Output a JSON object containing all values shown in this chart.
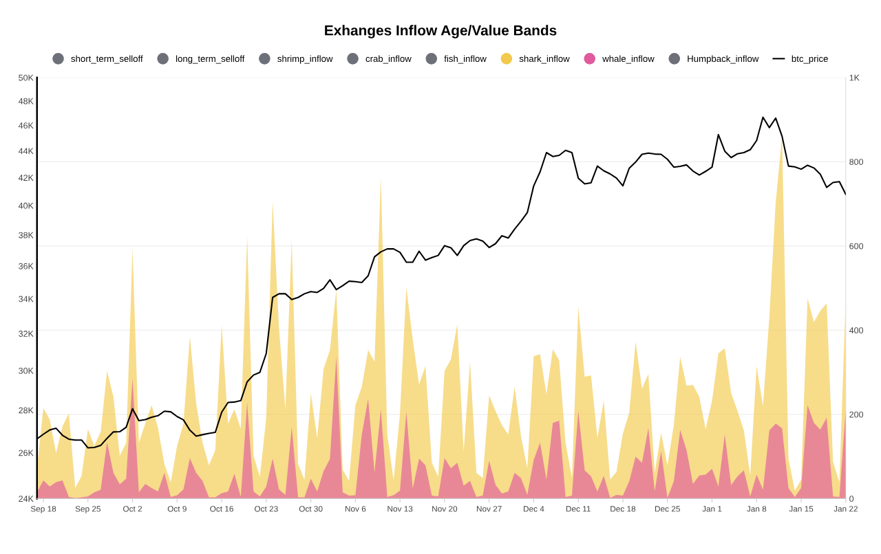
{
  "chart_data": {
    "type": "area",
    "title": "Exhanges Inflow Age/Value Bands",
    "categories": [
      null,
      "Sep 18",
      null,
      null,
      null,
      null,
      null,
      null,
      "Sep 25",
      null,
      null,
      null,
      null,
      null,
      null,
      "Oct 2",
      null,
      null,
      null,
      null,
      null,
      null,
      "Oct 9",
      null,
      null,
      null,
      null,
      null,
      null,
      "Oct 16",
      null,
      null,
      null,
      null,
      null,
      null,
      "Oct 23",
      null,
      null,
      null,
      null,
      null,
      null,
      "Oct 30",
      null,
      null,
      null,
      null,
      null,
      null,
      "Nov 6",
      null,
      null,
      null,
      null,
      null,
      null,
      "Nov 13",
      null,
      null,
      null,
      null,
      null,
      null,
      "Nov 20",
      null,
      null,
      null,
      null,
      null,
      null,
      "Nov 27",
      null,
      null,
      null,
      null,
      null,
      null,
      "Dec 4",
      null,
      null,
      null,
      null,
      null,
      null,
      "Dec 11",
      null,
      null,
      null,
      null,
      null,
      null,
      "Dec 18",
      null,
      null,
      null,
      null,
      null,
      null,
      "Dec 25",
      null,
      null,
      null,
      null,
      null,
      null,
      "Jan 1",
      null,
      null,
      null,
      null,
      null,
      null,
      "Jan 8",
      null,
      null,
      null,
      null,
      null,
      null,
      "Jan 15",
      null,
      null,
      null,
      null,
      null,
      null,
      "Jan 22"
    ],
    "series": [
      {
        "name": "short_term_selloff",
        "color": "#6e7079",
        "values": [
          null,
          null,
          null,
          null,
          null,
          null,
          null,
          null,
          null,
          null,
          null,
          null,
          null,
          null,
          null,
          null,
          null,
          null,
          null,
          null,
          null,
          null,
          null,
          null,
          null,
          null,
          null,
          null,
          null,
          null,
          null,
          null,
          null,
          null,
          null,
          null,
          null,
          null,
          null,
          null,
          null,
          null,
          null,
          null,
          null,
          null,
          null,
          null,
          null,
          null,
          null,
          null,
          null,
          null,
          null,
          null,
          null,
          null,
          null,
          null,
          null,
          null,
          null,
          null,
          null,
          null,
          null,
          null,
          null,
          null,
          null,
          null,
          null,
          null,
          null,
          null,
          null,
          null,
          null,
          null,
          null,
          null,
          null,
          null,
          null,
          null,
          null,
          null,
          null,
          null,
          null,
          null,
          null,
          null,
          null,
          null,
          null,
          null,
          null,
          null,
          null,
          null,
          null,
          null,
          null,
          null,
          null,
          null,
          null,
          null,
          null,
          null,
          null,
          null,
          null,
          null,
          null,
          null,
          null,
          null,
          null,
          null,
          null,
          null,
          null,
          null,
          null,
          null
        ]
      },
      {
        "name": "long_term_selloff",
        "color": "#6e7079",
        "values": [
          null,
          null,
          null,
          null,
          null,
          null,
          null,
          null,
          null,
          null,
          null,
          null,
          null,
          null,
          null,
          null,
          null,
          null,
          null,
          null,
          null,
          null,
          null,
          null,
          null,
          null,
          null,
          null,
          null,
          null,
          null,
          null,
          null,
          null,
          null,
          null,
          null,
          null,
          null,
          null,
          null,
          null,
          null,
          null,
          null,
          null,
          null,
          null,
          null,
          null,
          null,
          null,
          null,
          null,
          null,
          null,
          null,
          null,
          null,
          null,
          null,
          null,
          null,
          null,
          null,
          null,
          null,
          null,
          null,
          null,
          null,
          null,
          null,
          null,
          null,
          null,
          null,
          null,
          null,
          null,
          null,
          null,
          null,
          null,
          null,
          null,
          null,
          null,
          null,
          null,
          null,
          null,
          null,
          null,
          null,
          null,
          null,
          null,
          null,
          null,
          null,
          null,
          null,
          null,
          null,
          null,
          null,
          null,
          null,
          null,
          null,
          null,
          null,
          null,
          null,
          null,
          null,
          null,
          null,
          null,
          null,
          null,
          null,
          null,
          null,
          null,
          null,
          null
        ]
      },
      {
        "name": "shrimp_inflow",
        "color": "#6e7079",
        "values": [
          null,
          null,
          null,
          null,
          null,
          null,
          null,
          null,
          null,
          null,
          null,
          null,
          null,
          null,
          null,
          null,
          null,
          null,
          null,
          null,
          null,
          null,
          null,
          null,
          null,
          null,
          null,
          null,
          null,
          null,
          null,
          null,
          null,
          null,
          null,
          null,
          null,
          null,
          null,
          null,
          null,
          null,
          null,
          null,
          null,
          null,
          null,
          null,
          null,
          null,
          null,
          null,
          null,
          null,
          null,
          null,
          null,
          null,
          null,
          null,
          null,
          null,
          null,
          null,
          null,
          null,
          null,
          null,
          null,
          null,
          null,
          null,
          null,
          null,
          null,
          null,
          null,
          null,
          null,
          null,
          null,
          null,
          null,
          null,
          null,
          null,
          null,
          null,
          null,
          null,
          null,
          null,
          null,
          null,
          null,
          null,
          null,
          null,
          null,
          null,
          null,
          null,
          null,
          null,
          null,
          null,
          null,
          null,
          null,
          null,
          null,
          null,
          null,
          null,
          null,
          null,
          null,
          null,
          null,
          null,
          null,
          null,
          null,
          null,
          null,
          null,
          null,
          null
        ]
      },
      {
        "name": "crab_inflow",
        "color": "#6e7079",
        "values": [
          null,
          null,
          null,
          null,
          null,
          null,
          null,
          null,
          null,
          null,
          null,
          null,
          null,
          null,
          null,
          null,
          null,
          null,
          null,
          null,
          null,
          null,
          null,
          null,
          null,
          null,
          null,
          null,
          null,
          null,
          null,
          null,
          null,
          null,
          null,
          null,
          null,
          null,
          null,
          null,
          null,
          null,
          null,
          null,
          null,
          null,
          null,
          null,
          null,
          null,
          null,
          null,
          null,
          null,
          null,
          null,
          null,
          null,
          null,
          null,
          null,
          null,
          null,
          null,
          null,
          null,
          null,
          null,
          null,
          null,
          null,
          null,
          null,
          null,
          null,
          null,
          null,
          null,
          null,
          null,
          null,
          null,
          null,
          null,
          null,
          null,
          null,
          null,
          null,
          null,
          null,
          null,
          null,
          null,
          null,
          null,
          null,
          null,
          null,
          null,
          null,
          null,
          null,
          null,
          null,
          null,
          null,
          null,
          null,
          null,
          null,
          null,
          null,
          null,
          null,
          null,
          null,
          null,
          null,
          null,
          null,
          null,
          null,
          null,
          null,
          null,
          null,
          null
        ]
      },
      {
        "name": "fish_inflow",
        "color": "#6e7079",
        "values": [
          null,
          null,
          null,
          null,
          null,
          null,
          null,
          null,
          null,
          null,
          null,
          null,
          null,
          null,
          null,
          null,
          null,
          null,
          null,
          null,
          null,
          null,
          null,
          null,
          null,
          null,
          null,
          null,
          null,
          null,
          null,
          null,
          null,
          null,
          null,
          null,
          null,
          null,
          null,
          null,
          null,
          null,
          null,
          null,
          null,
          null,
          null,
          null,
          null,
          null,
          null,
          null,
          null,
          null,
          null,
          null,
          null,
          null,
          null,
          null,
          null,
          null,
          null,
          null,
          null,
          null,
          null,
          null,
          null,
          null,
          null,
          null,
          null,
          null,
          null,
          null,
          null,
          null,
          null,
          null,
          null,
          null,
          null,
          null,
          null,
          null,
          null,
          null,
          null,
          null,
          null,
          null,
          null,
          null,
          null,
          null,
          null,
          null,
          null,
          null,
          null,
          null,
          null,
          null,
          null,
          null,
          null,
          null,
          null,
          null,
          null,
          null,
          null,
          null,
          null,
          null,
          null,
          null,
          null,
          null,
          null,
          null,
          null,
          null,
          null,
          null,
          null,
          null
        ]
      },
      {
        "name": "shark_inflow",
        "color": "#f2c94c",
        "axis": "y2",
        "values": [
          72,
          215,
          188,
          108,
          172,
          202,
          25,
          54,
          165,
          125,
          158,
          303,
          242,
          102,
          132,
          594,
          133,
          178,
          222,
          168,
          82,
          39,
          125,
          178,
          385,
          225,
          132,
          79,
          115,
          413,
          178,
          212,
          166,
          624,
          102,
          52,
          192,
          707,
          405,
          212,
          614,
          82,
          45,
          250,
          144,
          308,
          353,
          496,
          69,
          42,
          222,
          265,
          353,
          325,
          765,
          152,
          44,
          202,
          502,
          378,
          271,
          315,
          85,
          52,
          303,
          331,
          414,
          112,
          325,
          61,
          49,
          245,
          208,
          175,
          152,
          266,
          148,
          72,
          338,
          343,
          248,
          355,
          328,
          132,
          49,
          456,
          289,
          293,
          144,
          233,
          45,
          64,
          154,
          204,
          373,
          261,
          296,
          62,
          156,
          79,
          175,
          337,
          268,
          270,
          242,
          165,
          232,
          345,
          357,
          251,
          208,
          162,
          55,
          315,
          220,
          431,
          704,
          860,
          95,
          19,
          45,
          476,
          419,
          446,
          464,
          88,
          39,
          479
        ]
      },
      {
        "name": "whale_inflow",
        "color": "#e05a9c",
        "axis": "y2",
        "values": [
          15,
          43,
          29,
          39,
          43,
          4,
          1,
          3,
          5,
          15,
          21,
          134,
          61,
          34,
          47,
          285,
          15,
          35,
          25,
          17,
          61,
          4,
          8,
          22,
          96,
          61,
          42,
          3,
          3,
          13,
          17,
          59,
          4,
          228,
          17,
          5,
          29,
          95,
          22,
          9,
          170,
          3,
          3,
          47,
          17,
          65,
          94,
          337,
          15,
          7,
          8,
          152,
          237,
          62,
          212,
          4,
          8,
          19,
          206,
          24,
          95,
          79,
          7,
          5,
          96,
          72,
          85,
          31,
          42,
          4,
          7,
          90,
          33,
          12,
          17,
          61,
          49,
          9,
          92,
          133,
          45,
          180,
          185,
          4,
          7,
          208,
          67,
          53,
          17,
          54,
          2,
          9,
          7,
          41,
          100,
          85,
          167,
          17,
          113,
          2,
          41,
          163,
          115,
          35,
          55,
          57,
          71,
          29,
          152,
          32,
          53,
          67,
          5,
          57,
          21,
          162,
          178,
          167,
          25,
          4,
          25,
          222,
          180,
          164,
          192,
          5,
          4,
          213
        ]
      },
      {
        "name": "Humpback_inflow",
        "color": "#6e7079",
        "values": [
          null,
          null,
          null,
          null,
          null,
          null,
          null,
          null,
          null,
          null,
          null,
          null,
          null,
          null,
          null,
          null,
          null,
          null,
          null,
          null,
          null,
          null,
          null,
          null,
          null,
          null,
          null,
          null,
          null,
          null,
          null,
          null,
          null,
          null,
          null,
          null,
          null,
          null,
          null,
          null,
          null,
          null,
          null,
          null,
          null,
          null,
          null,
          null,
          null,
          null,
          null,
          null,
          null,
          null,
          null,
          null,
          null,
          null,
          null,
          null,
          null,
          null,
          null,
          null,
          null,
          null,
          null,
          null,
          null,
          null,
          null,
          null,
          null,
          null,
          null,
          null,
          null,
          null,
          null,
          null,
          null,
          null,
          null,
          null,
          null,
          null,
          null,
          null,
          null,
          null,
          null,
          null,
          null,
          null,
          null,
          null,
          null,
          null,
          null,
          null,
          null,
          null,
          null,
          null,
          null,
          null,
          null,
          null,
          null,
          null,
          null,
          null,
          null,
          null,
          null,
          null,
          null,
          null,
          null,
          null,
          null,
          null,
          null,
          null,
          null,
          null,
          null,
          null
        ]
      },
      {
        "name": "btc_price",
        "type": "line",
        "color": "#000000",
        "axis": "y",
        "values": [
          26630,
          26850,
          27050,
          27130,
          26800,
          26620,
          26580,
          26580,
          26220,
          26240,
          26330,
          26660,
          26960,
          26970,
          27180,
          28070,
          27490,
          27540,
          27660,
          27730,
          27950,
          27920,
          27690,
          27530,
          27040,
          26760,
          26830,
          26890,
          26940,
          27900,
          28380,
          28400,
          28470,
          29420,
          29770,
          29910,
          30910,
          34080,
          34300,
          34300,
          33960,
          34080,
          34300,
          34430,
          34380,
          34620,
          35140,
          34550,
          34790,
          35060,
          35030,
          34980,
          35390,
          36580,
          36900,
          37090,
          37090,
          36870,
          36240,
          36240,
          36940,
          36370,
          36530,
          36670,
          37300,
          37160,
          36670,
          37300,
          37630,
          37740,
          37600,
          37180,
          37430,
          37950,
          37800,
          38390,
          38920,
          39520,
          41400,
          42420,
          43870,
          43570,
          43660,
          44040,
          43870,
          41960,
          41540,
          41620,
          42850,
          42500,
          42270,
          41960,
          41400,
          42690,
          43150,
          43740,
          43830,
          43760,
          43740,
          43360,
          42770,
          42830,
          42940,
          42480,
          42190,
          42460,
          42770,
          45270,
          43980,
          43490,
          43780,
          43870,
          44090,
          44800,
          46660,
          45820,
          46590,
          45130,
          42850,
          42790,
          42620,
          42910,
          42710,
          42250,
          41290,
          41640,
          41700,
          40790
        ]
      }
    ],
    "log": "y",
    "ylim": [
      24000,
      50000
    ],
    "yticks": [
      {
        "value": 24000,
        "label": "24K"
      },
      {
        "value": 26000,
        "label": "26K"
      },
      {
        "value": 28000,
        "label": "28K"
      },
      {
        "value": 30000,
        "label": "30K"
      },
      {
        "value": 32000,
        "label": "32K"
      },
      {
        "value": 34000,
        "label": "34K"
      },
      {
        "value": 36000,
        "label": "36K"
      },
      {
        "value": 38000,
        "label": "38K"
      },
      {
        "value": 40000,
        "label": "40K"
      },
      {
        "value": 42000,
        "label": "42K"
      },
      {
        "value": 44000,
        "label": "44K"
      },
      {
        "value": 46000,
        "label": "46K"
      },
      {
        "value": 48000,
        "label": "48K"
      },
      {
        "value": 50000,
        "label": "50K"
      }
    ],
    "y2lim": [
      0,
      1000
    ],
    "y2ticks": [
      0,
      200,
      400,
      600,
      800,
      {
        "value": 1000,
        "label": "1K"
      }
    ],
    "grid": "y2",
    "legend": "top",
    "marker": "none",
    "line_style": "solid"
  }
}
